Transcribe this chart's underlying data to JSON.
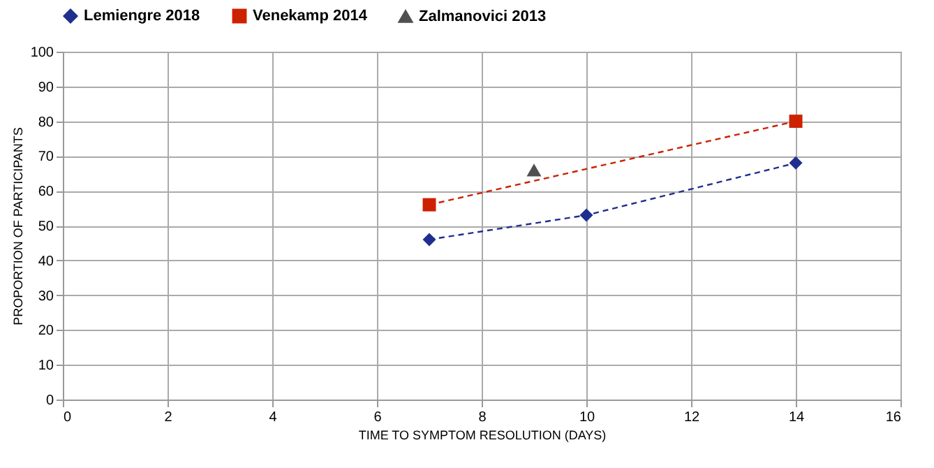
{
  "chart_data": {
    "type": "line",
    "xlabel": "TIME TO SYMPTOM RESOLUTION  (DAYS)",
    "ylabel": "PROPORTION OF PARTICIPANTS",
    "xlim": [
      0,
      16
    ],
    "xticks": [
      0,
      2,
      4,
      6,
      8,
      10,
      12,
      14,
      16
    ],
    "ylim": [
      0,
      100
    ],
    "yticks": [
      0,
      10,
      20,
      30,
      40,
      50,
      60,
      70,
      80,
      90,
      100
    ],
    "grid": true,
    "legend": "top",
    "series": [
      {
        "name": "Lemiengre 2018",
        "color": "#1f2f8f",
        "marker": "diamond",
        "line_style": "dashed",
        "x": [
          7,
          10,
          14
        ],
        "values": [
          46,
          53,
          68
        ]
      },
      {
        "name": "Venekamp 2014",
        "color": "#cc2200",
        "marker": "square",
        "line_style": "dashed",
        "x": [
          7,
          14
        ],
        "values": [
          56,
          80
        ]
      },
      {
        "name": "Zalmanovici 2013",
        "type": "scatter",
        "color": "#505050",
        "marker": "triangle",
        "x": [
          9
        ],
        "values": [
          66
        ]
      }
    ]
  }
}
